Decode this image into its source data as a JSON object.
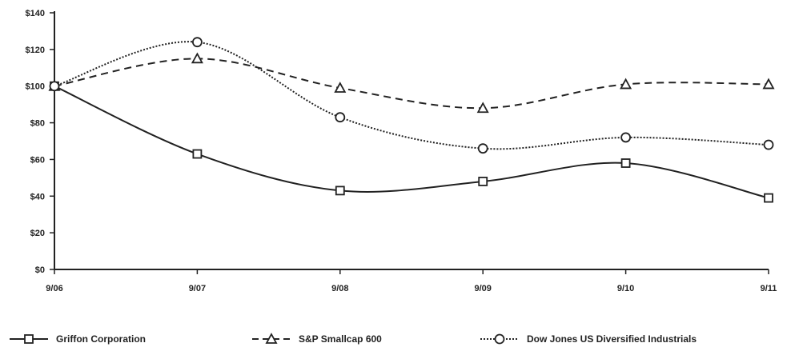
{
  "chart_data": {
    "type": "line",
    "title": "",
    "xlabel": "",
    "ylabel": "",
    "categories": [
      "9/06",
      "9/07",
      "9/08",
      "9/09",
      "9/10",
      "9/11"
    ],
    "ylim": [
      0,
      140
    ],
    "yticks": [
      0,
      20,
      40,
      60,
      80,
      100,
      120,
      140
    ],
    "ytick_labels": [
      "$0",
      "$20",
      "$40",
      "$60",
      "$80",
      "$100",
      "$120",
      "$140"
    ],
    "grid": false,
    "legend_position": "bottom",
    "series": [
      {
        "name": "Griffon Corporation",
        "values": [
          100,
          63,
          43,
          48,
          58,
          39
        ],
        "marker": "square",
        "dash": "solid",
        "color": "#222222"
      },
      {
        "name": "S&P Smallcap 600",
        "values": [
          100,
          115,
          99,
          88,
          101,
          101
        ],
        "marker": "triangle",
        "dash": "dashed",
        "color": "#222222"
      },
      {
        "name": "Dow Jones US Diversified Industrials",
        "values": [
          100,
          124,
          83,
          66,
          72,
          68
        ],
        "marker": "circle",
        "dash": "dotted",
        "color": "#222222"
      }
    ]
  }
}
